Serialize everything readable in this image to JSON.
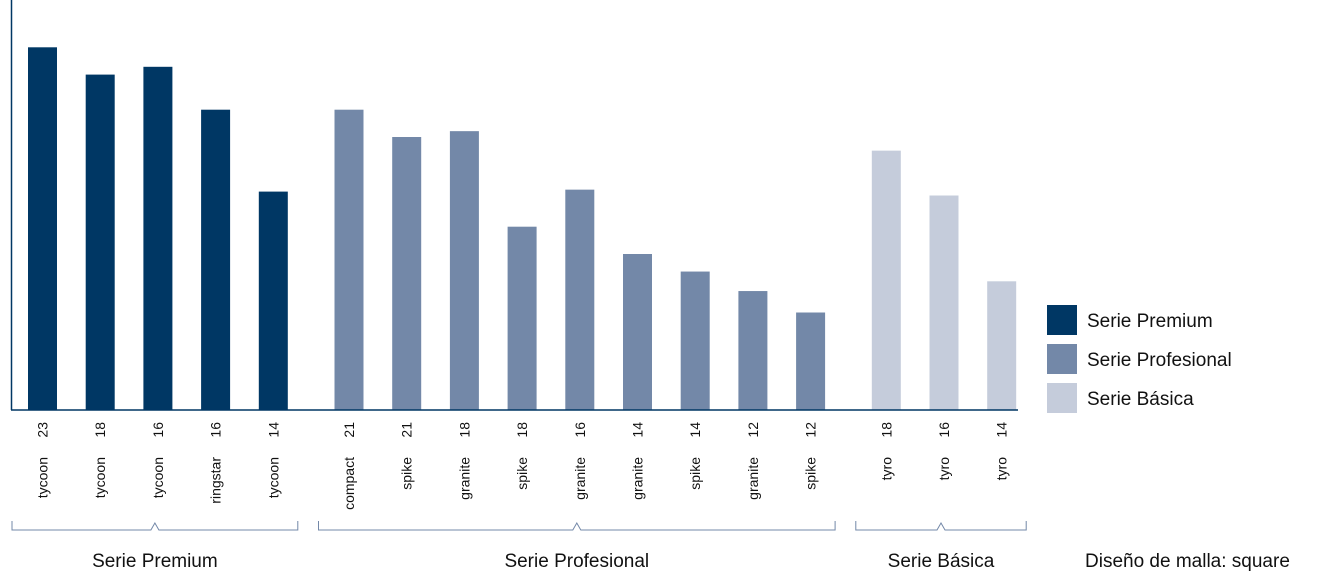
{
  "chart_data": {
    "type": "bar",
    "title": "",
    "xlabel": "",
    "ylabel": "",
    "ylim": [
      0,
      100
    ],
    "grid": false,
    "legend_position": "right",
    "series": [
      {
        "name": "Serie Premium",
        "color": "#003764"
      },
      {
        "name": "Serie Profesional",
        "color": "#7388a8"
      },
      {
        "name": "Serie Básica",
        "color": "#c5ccdb"
      }
    ],
    "bars": [
      {
        "gauge": "23",
        "model": "tycoon",
        "group": "Serie Premium",
        "value": 93
      },
      {
        "gauge": "18",
        "model": "tycoon",
        "group": "Serie Premium",
        "value": 86
      },
      {
        "gauge": "16",
        "model": "tycoon",
        "group": "Serie Premium",
        "value": 88
      },
      {
        "gauge": "16",
        "model": "ringstar",
        "group": "Serie Premium",
        "value": 77
      },
      {
        "gauge": "14",
        "model": "tycoon",
        "group": "Serie Premium",
        "value": 56
      },
      {
        "gauge": "21",
        "model": "compact",
        "group": "Serie Profesional",
        "value": 77
      },
      {
        "gauge": "21",
        "model": "spike",
        "group": "Serie Profesional",
        "value": 70
      },
      {
        "gauge": "18",
        "model": "granite",
        "group": "Serie Profesional",
        "value": 71.5
      },
      {
        "gauge": "18",
        "model": "spike",
        "group": "Serie Profesional",
        "value": 47
      },
      {
        "gauge": "16",
        "model": "granite",
        "group": "Serie Profesional",
        "value": 56.5
      },
      {
        "gauge": "14",
        "model": "granite",
        "group": "Serie Profesional",
        "value": 40
      },
      {
        "gauge": "14",
        "model": "spike",
        "group": "Serie Profesional",
        "value": 35.5
      },
      {
        "gauge": "12",
        "model": "granite",
        "group": "Serie Profesional",
        "value": 30.5
      },
      {
        "gauge": "12",
        "model": "spike",
        "group": "Serie Profesional",
        "value": 25
      },
      {
        "gauge": "18",
        "model": "tyro",
        "group": "Serie Básica",
        "value": 66.5
      },
      {
        "gauge": "16",
        "model": "tyro",
        "group": "Serie Básica",
        "value": 55
      },
      {
        "gauge": "14",
        "model": "tyro",
        "group": "Serie Básica",
        "value": 33
      }
    ],
    "groups": [
      "Serie Premium",
      "Serie Profesional",
      "Serie Básica"
    ],
    "footnote": "Diseño de malla: square"
  }
}
